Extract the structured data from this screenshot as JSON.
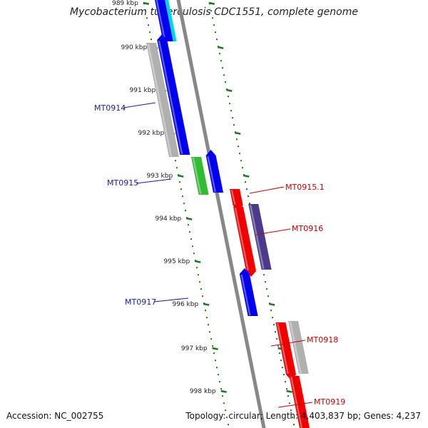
{
  "title": "Mycobacterium tuberculosis CDC1551, complete genome",
  "accession": "Accession: NC_002755",
  "summary": "Topology: circular; Length: 4,403,837 bp; Genes: 4,237",
  "colors": {
    "backbone": "#888888",
    "tick": "#1a7a1a",
    "left_label": "#1a1aaa",
    "right_label": "#cc0000"
  },
  "scale_labels": [
    "989 kbp",
    "990 kbp",
    "991 kbp",
    "992 kbp",
    "993 kbp",
    "994 kbp",
    "995 kbp",
    "996 kbp",
    "997 kbp",
    "998 kbp"
  ],
  "gene_labels": {
    "left": [
      "MT0914",
      "MT0915",
      "MT0917"
    ],
    "right": [
      "MT0915.1",
      "MT0916",
      "MT0918",
      "MT0919"
    ]
  },
  "features": [
    {
      "color": "#00d8d8",
      "strand": "minus"
    },
    {
      "color": "#0000ee",
      "strand": "minus"
    },
    {
      "color": "#b0b0b0",
      "strand": "minus"
    },
    {
      "color": "#0000ee",
      "strand": "minus"
    },
    {
      "color": "#33bb33",
      "strand": "minus"
    },
    {
      "color": "#0000ee",
      "strand": "minus"
    },
    {
      "color": "#ee0000",
      "strand": "plus"
    },
    {
      "color": "#ee0000",
      "strand": "plus"
    },
    {
      "color": "#4b3a8c",
      "strand": "plus"
    },
    {
      "color": "#0000ee",
      "strand": "minus"
    },
    {
      "color": "#ee0000",
      "strand": "plus"
    },
    {
      "color": "#b0b0b0",
      "strand": "plus"
    },
    {
      "color": "#ee0000",
      "strand": "plus"
    }
  ]
}
